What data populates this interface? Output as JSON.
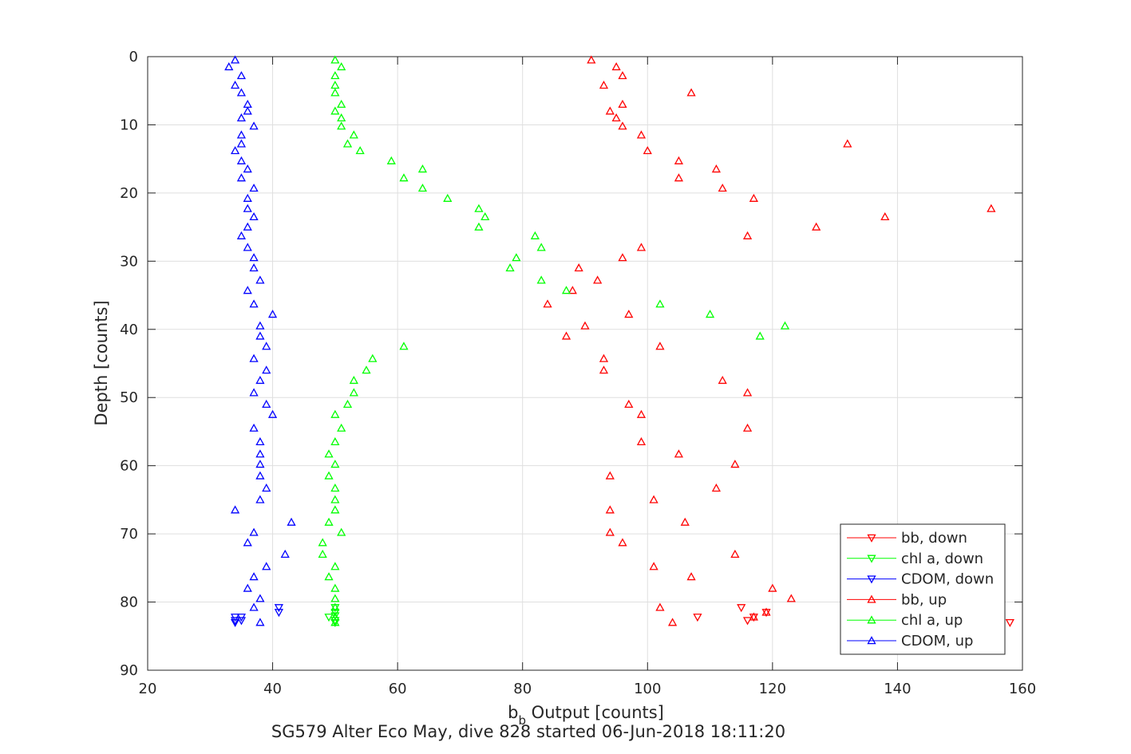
{
  "chart_data": {
    "type": "scatter",
    "xlabel_main": "b",
    "xlabel_sub": "b",
    "xlabel_rest": " Output [counts]",
    "ylabel": "Depth [counts]",
    "caption": "SG579 Alter Eco May, dive 828 started 06-Jun-2018 18:11:20",
    "xlim": [
      20,
      160
    ],
    "ylim": [
      0,
      90
    ],
    "y_reversed": true,
    "xticks": [
      "20",
      "40",
      "60",
      "80",
      "100",
      "120",
      "140",
      "160"
    ],
    "yticks": [
      "0",
      "10",
      "20",
      "30",
      "40",
      "50",
      "60",
      "70",
      "80",
      "90"
    ],
    "grid": true,
    "legend_position": "bottom-right",
    "series": [
      {
        "name": "bb, down",
        "color": "#ff0000",
        "marker": "triangle-down",
        "x": [
          108,
          115,
          119,
          117,
          116,
          158
        ],
        "y": [
          82.2,
          80.8,
          81.5,
          82.2,
          82.7,
          83.0
        ]
      },
      {
        "name": "chl a, down",
        "color": "#00ff00",
        "marker": "triangle-down",
        "x": [
          50,
          50,
          50,
          49,
          50,
          50
        ],
        "y": [
          80.8,
          81.5,
          82.0,
          82.2,
          82.7,
          83.0
        ]
      },
      {
        "name": "CDOM, down",
        "color": "#0000ff",
        "marker": "triangle-down",
        "x": [
          41,
          41,
          34,
          35,
          34,
          35,
          34
        ],
        "y": [
          80.8,
          81.5,
          82.2,
          82.2,
          82.7,
          82.7,
          83.0
        ]
      },
      {
        "name": "bb, up",
        "color": "#ff0000",
        "marker": "triangle-up",
        "x": [
          91,
          95,
          96,
          93,
          107,
          96,
          94,
          95,
          96,
          99,
          132,
          100,
          105,
          111,
          105,
          112,
          117,
          155,
          138,
          127,
          116,
          99,
          96,
          89,
          92,
          88,
          84,
          97,
          90,
          87,
          102,
          93,
          93,
          112,
          116,
          97,
          99,
          116,
          99,
          105,
          114,
          94,
          111,
          101,
          94,
          106,
          94,
          96,
          114,
          101,
          107,
          120,
          123,
          102,
          119,
          117,
          104
        ],
        "y": [
          0.5,
          1.5,
          2.8,
          4.2,
          5.3,
          7.0,
          8.0,
          9.0,
          10.2,
          11.5,
          12.8,
          13.8,
          15.3,
          16.5,
          17.8,
          19.3,
          20.8,
          22.3,
          23.5,
          25.0,
          26.3,
          28.0,
          29.5,
          31.0,
          32.8,
          34.3,
          36.3,
          37.8,
          39.5,
          41.0,
          42.5,
          44.3,
          46.0,
          47.5,
          49.3,
          51.0,
          52.5,
          54.5,
          56.5,
          58.3,
          59.8,
          61.5,
          63.3,
          65.0,
          66.5,
          68.3,
          69.8,
          71.3,
          73.0,
          74.8,
          76.3,
          78.0,
          79.5,
          80.8,
          81.5,
          82.2,
          83.0
        ]
      },
      {
        "name": "chl a, up",
        "color": "#00ff00",
        "marker": "triangle-up",
        "x": [
          50,
          51,
          50,
          50,
          50,
          51,
          50,
          51,
          51,
          53,
          52,
          54,
          59,
          64,
          61,
          64,
          68,
          73,
          74,
          73,
          82,
          83,
          79,
          78,
          83,
          87,
          102,
          110,
          122,
          118,
          61,
          56,
          55,
          53,
          53,
          52,
          50,
          51,
          50,
          49,
          50,
          49,
          50,
          50,
          50,
          49,
          51,
          48,
          48,
          50,
          49,
          50,
          50,
          50,
          50,
          50
        ],
        "y": [
          0.5,
          1.5,
          2.8,
          4.2,
          5.3,
          7.0,
          8.0,
          9.0,
          10.2,
          11.5,
          12.8,
          13.8,
          15.3,
          16.5,
          17.8,
          19.3,
          20.8,
          22.3,
          23.5,
          25.0,
          26.3,
          28.0,
          29.5,
          31.0,
          32.8,
          34.3,
          36.3,
          37.8,
          39.5,
          41.0,
          42.5,
          44.3,
          46.0,
          47.5,
          49.3,
          51.0,
          52.5,
          54.5,
          56.5,
          58.3,
          59.8,
          61.5,
          63.3,
          65.0,
          66.5,
          68.3,
          69.8,
          71.3,
          73.0,
          74.8,
          76.3,
          78.0,
          79.5,
          80.8,
          82.2,
          83.0
        ]
      },
      {
        "name": "CDOM, up",
        "color": "#0000ff",
        "marker": "triangle-up",
        "x": [
          34,
          33,
          35,
          34,
          35,
          36,
          36,
          35,
          37,
          35,
          35,
          34,
          35,
          36,
          35,
          37,
          36,
          36,
          37,
          36,
          35,
          36,
          37,
          37,
          38,
          36,
          37,
          40,
          38,
          38,
          39,
          37,
          39,
          38,
          37,
          39,
          40,
          37,
          38,
          38,
          38,
          38,
          39,
          38,
          34,
          43,
          37,
          36,
          42,
          39,
          37,
          36,
          38,
          37,
          38
        ],
        "y": [
          0.5,
          1.5,
          2.8,
          4.2,
          5.3,
          7.0,
          8.0,
          9.0,
          10.2,
          11.5,
          12.8,
          13.8,
          15.3,
          16.5,
          17.8,
          19.3,
          20.8,
          22.3,
          23.5,
          25.0,
          26.3,
          28.0,
          29.5,
          31.0,
          32.8,
          34.3,
          36.3,
          37.8,
          39.5,
          41.0,
          42.5,
          44.3,
          46.0,
          47.5,
          49.3,
          51.0,
          52.5,
          54.5,
          56.5,
          58.3,
          59.8,
          61.5,
          63.3,
          65.0,
          66.5,
          68.3,
          69.8,
          71.3,
          73.0,
          74.8,
          76.3,
          78.0,
          79.5,
          80.8,
          83.0
        ]
      }
    ]
  }
}
